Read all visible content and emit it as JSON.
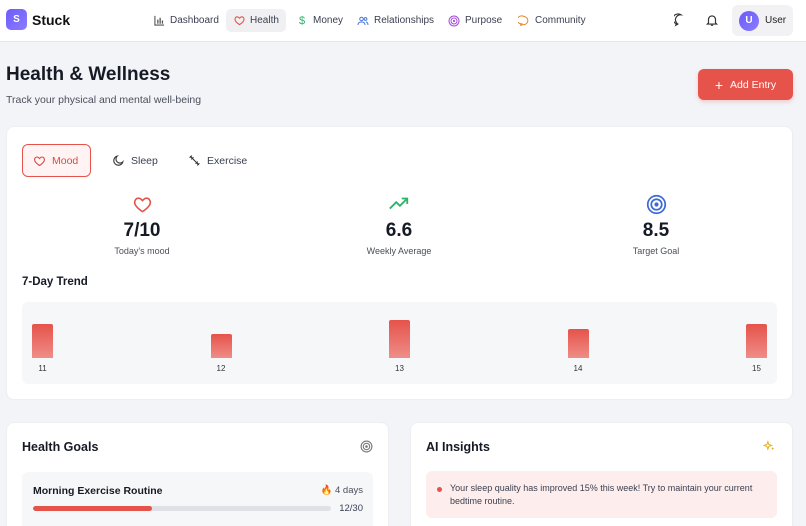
{
  "app": {
    "logo_letter": "S",
    "name": "Stuck"
  },
  "nav": {
    "items": [
      {
        "label": "Dashboard",
        "icon": "bar-chart-icon"
      },
      {
        "label": "Health",
        "icon": "heart-icon"
      },
      {
        "label": "Money",
        "icon": "dollar-icon"
      },
      {
        "label": "Relationships",
        "icon": "users-icon"
      },
      {
        "label": "Purpose",
        "icon": "target-icon"
      },
      {
        "label": "Community",
        "icon": "chat-icon"
      }
    ],
    "active": "Health",
    "user": {
      "initial": "U",
      "name": "User"
    }
  },
  "header": {
    "title": "Health & Wellness",
    "subtitle": "Track your physical and mental well-being",
    "add_label": "Add Entry"
  },
  "tabs": [
    {
      "label": "Mood",
      "icon": "heart-icon"
    },
    {
      "label": "Sleep",
      "icon": "moon-icon"
    },
    {
      "label": "Exercise",
      "icon": "dumbbell-icon"
    }
  ],
  "stats": [
    {
      "value": "7/10",
      "label": "Today's mood",
      "icon": "heart-icon"
    },
    {
      "value": "6.6",
      "label": "Weekly Average",
      "icon": "trending-up-icon"
    },
    {
      "value": "8.5",
      "label": "Target Goal",
      "icon": "target-icon"
    }
  ],
  "trend": {
    "title": "7-Day Trend"
  },
  "chart_data": {
    "type": "bar",
    "categories": [
      "11",
      "12",
      "13",
      "14",
      "15"
    ],
    "values": [
      7,
      5,
      8,
      6,
      7
    ],
    "ylim": [
      0,
      10
    ],
    "title": "7-Day Trend"
  },
  "goals": {
    "title": "Health Goals",
    "items": [
      {
        "name": "Morning Exercise Routine",
        "streak": "4 days",
        "count": "12/30",
        "progress": 0.4
      }
    ]
  },
  "insights": {
    "title": "AI Insights",
    "items": [
      {
        "text": "Your sleep quality has improved 15% this week! Try to maintain your current bedtime routine."
      }
    ]
  },
  "colors": {
    "accent": "#e5534b",
    "brand": "#6d5dfc",
    "trend_up": "#2fb36b",
    "target": "#3d6ad6"
  }
}
